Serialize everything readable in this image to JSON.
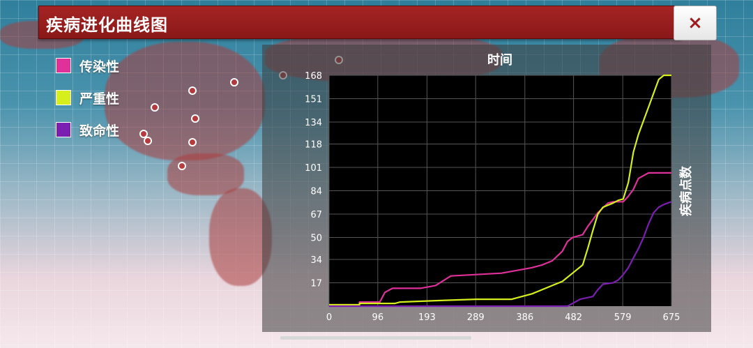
{
  "window": {
    "title": "疾病进化曲线图",
    "close_label": "×"
  },
  "legend": [
    {
      "label": "传染性",
      "color": "#e0309a"
    },
    {
      "label": "严重性",
      "color": "#d6ef1c"
    },
    {
      "label": "致命性",
      "color": "#7a1fb0"
    }
  ],
  "chart_data": {
    "type": "line",
    "title": "时间",
    "ylabel": "疾病点数",
    "xlim": [
      0,
      675
    ],
    "ylim": [
      0,
      168
    ],
    "x_ticks": [
      "0",
      "96",
      "193",
      "289",
      "386",
      "482",
      "579",
      "675"
    ],
    "y_ticks": [
      "17",
      "34",
      "50",
      "67",
      "84",
      "101",
      "118",
      "134",
      "151",
      "168"
    ],
    "grid": true,
    "series": [
      {
        "name": "传染性",
        "color": "#e0309a",
        "points": [
          [
            0,
            1
          ],
          [
            60,
            1
          ],
          [
            60,
            3
          ],
          [
            100,
            3
          ],
          [
            110,
            10
          ],
          [
            125,
            13
          ],
          [
            180,
            13
          ],
          [
            210,
            15
          ],
          [
            240,
            22
          ],
          [
            290,
            23
          ],
          [
            340,
            24
          ],
          [
            370,
            26
          ],
          [
            400,
            28
          ],
          [
            420,
            30
          ],
          [
            440,
            33
          ],
          [
            460,
            40
          ],
          [
            470,
            47
          ],
          [
            480,
            50
          ],
          [
            500,
            52
          ],
          [
            510,
            58
          ],
          [
            520,
            63
          ],
          [
            530,
            68
          ],
          [
            550,
            75
          ],
          [
            560,
            76
          ],
          [
            580,
            76
          ],
          [
            590,
            80
          ],
          [
            600,
            85
          ],
          [
            610,
            93
          ],
          [
            620,
            95
          ],
          [
            630,
            97
          ],
          [
            675,
            97
          ]
        ]
      },
      {
        "name": "严重性",
        "color": "#d6ef1c",
        "points": [
          [
            0,
            1
          ],
          [
            60,
            1
          ],
          [
            60,
            2
          ],
          [
            130,
            2
          ],
          [
            140,
            3
          ],
          [
            210,
            4
          ],
          [
            290,
            5
          ],
          [
            360,
            5
          ],
          [
            380,
            7
          ],
          [
            400,
            9
          ],
          [
            420,
            12
          ],
          [
            440,
            15
          ],
          [
            460,
            18
          ],
          [
            480,
            24
          ],
          [
            500,
            30
          ],
          [
            510,
            42
          ],
          [
            520,
            55
          ],
          [
            530,
            67
          ],
          [
            540,
            72
          ],
          [
            560,
            75
          ],
          [
            570,
            77
          ],
          [
            580,
            78
          ],
          [
            590,
            90
          ],
          [
            600,
            112
          ],
          [
            610,
            125
          ],
          [
            620,
            135
          ],
          [
            630,
            145
          ],
          [
            640,
            155
          ],
          [
            650,
            165
          ],
          [
            660,
            168
          ],
          [
            675,
            168
          ]
        ]
      },
      {
        "name": "致命性",
        "color": "#7a1fb0",
        "points": [
          [
            0,
            0
          ],
          [
            470,
            0
          ],
          [
            480,
            2
          ],
          [
            495,
            5
          ],
          [
            520,
            7
          ],
          [
            530,
            12
          ],
          [
            540,
            16
          ],
          [
            560,
            17
          ],
          [
            570,
            19
          ],
          [
            580,
            23
          ],
          [
            590,
            28
          ],
          [
            600,
            35
          ],
          [
            610,
            42
          ],
          [
            620,
            50
          ],
          [
            630,
            60
          ],
          [
            640,
            68
          ],
          [
            650,
            72
          ],
          [
            660,
            74
          ],
          [
            675,
            76
          ]
        ]
      }
    ]
  }
}
